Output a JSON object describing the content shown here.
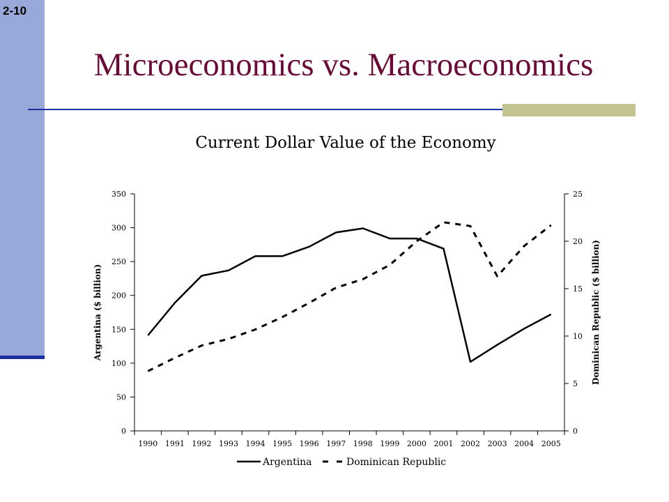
{
  "slide": {
    "number": "2-10",
    "title": "Microeconomics vs. Macroeconomics"
  },
  "colors": {
    "sidebar": "#98a8d8",
    "rule": "#1c2ea0",
    "accent": "#c4c490",
    "title": "#6b0a36"
  },
  "chart_data": {
    "type": "line",
    "title": "Current Dollar Value of the Economy",
    "x": [
      "1990",
      "1991",
      "1992",
      "1993",
      "1994",
      "1995",
      "1996",
      "1997",
      "1998",
      "1999",
      "2000",
      "2001",
      "2002",
      "2003",
      "2004",
      "2005"
    ],
    "series": [
      {
        "name": "Argentina",
        "axis": "left",
        "style": "solid",
        "values": [
          141,
          189,
          229,
          237,
          258,
          258,
          272,
          293,
          299,
          284,
          284,
          269,
          102,
          127,
          151,
          172
        ]
      },
      {
        "name": "Dominican Republic",
        "axis": "right",
        "style": "dashed",
        "values": [
          6.3,
          7.7,
          9.0,
          9.7,
          10.7,
          12.0,
          13.5,
          15.1,
          16.0,
          17.5,
          20.0,
          22.0,
          21.6,
          16.3,
          19.5,
          21.7
        ]
      }
    ],
    "ylabel_left": "Argentina ($ billion)",
    "ylabel_right": "Dominican Republic ($ billion)",
    "ylim_left": [
      0,
      350
    ],
    "ylim_right": [
      0,
      25
    ],
    "yticks_left": [
      0,
      50,
      100,
      150,
      200,
      250,
      300,
      350
    ],
    "yticks_right": [
      0,
      5,
      10,
      15,
      20,
      25
    ],
    "grid": false,
    "legend": "bottom"
  }
}
